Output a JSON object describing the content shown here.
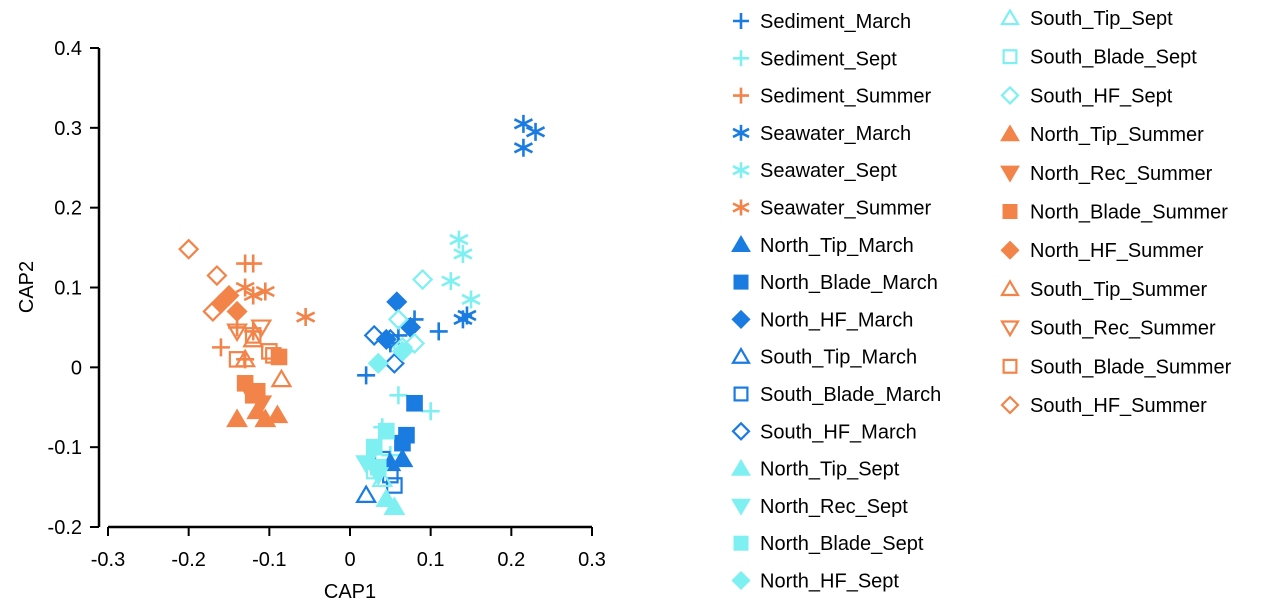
{
  "chart_data": {
    "type": "scatter",
    "xlabel": "CAP1",
    "ylabel": "CAP2",
    "xlim": [
      -0.3,
      0.3
    ],
    "ylim": [
      -0.2,
      0.4
    ],
    "xticks": [
      -0.3,
      -0.2,
      -0.1,
      0,
      0.1,
      0.2,
      0.3
    ],
    "xtick_labels": [
      "-0.3",
      "-0.2",
      "-0.1",
      "0",
      "0.1",
      "0.2",
      "0.3"
    ],
    "yticks": [
      -0.2,
      -0.1,
      0,
      0.1,
      0.2,
      0.3,
      0.4
    ],
    "ytick_labels": [
      "-0.2",
      "-0.1",
      "0",
      "0.1",
      "0.2",
      "0.3",
      "0.4"
    ],
    "grid": false,
    "legend_position": "right",
    "colors": {
      "march": "#1a7be0",
      "sept": "#7ef0f2",
      "summer": "#f2844a"
    },
    "series": [
      {
        "name": "Sediment_March",
        "color": "march",
        "marker": "plus",
        "points": [
          [
            0.02,
            -0.01
          ],
          [
            0.06,
            0.04
          ],
          [
            0.08,
            0.06
          ],
          [
            0.11,
            0.045
          ],
          [
            0.05,
            0.03
          ]
        ]
      },
      {
        "name": "Sediment_Sept",
        "color": "sept",
        "marker": "plus",
        "points": [
          [
            0.06,
            -0.035
          ],
          [
            0.1,
            -0.055
          ],
          [
            0.04,
            -0.075
          ],
          [
            0.05,
            -0.11
          ]
        ]
      },
      {
        "name": "Sediment_Summer",
        "color": "summer",
        "marker": "plus",
        "points": [
          [
            -0.13,
            0.13
          ],
          [
            -0.12,
            0.13
          ],
          [
            -0.14,
            0.05
          ],
          [
            -0.16,
            0.025
          ],
          [
            -0.13,
            0.01
          ],
          [
            -0.12,
            0.045
          ]
        ]
      },
      {
        "name": "Seawater_March",
        "color": "march",
        "marker": "asterisk",
        "points": [
          [
            0.215,
            0.305
          ],
          [
            0.23,
            0.295
          ],
          [
            0.215,
            0.275
          ],
          [
            0.14,
            0.06
          ],
          [
            0.145,
            0.065
          ]
        ]
      },
      {
        "name": "Seawater_Sept",
        "color": "sept",
        "marker": "asterisk",
        "points": [
          [
            0.135,
            0.16
          ],
          [
            0.14,
            0.142
          ],
          [
            0.125,
            0.108
          ],
          [
            0.15,
            0.085
          ]
        ]
      },
      {
        "name": "Seawater_Summer",
        "color": "summer",
        "marker": "asterisk",
        "points": [
          [
            -0.055,
            0.063
          ],
          [
            -0.105,
            0.095
          ],
          [
            -0.12,
            0.09
          ],
          [
            -0.13,
            0.1
          ]
        ]
      },
      {
        "name": "North_Tip_March",
        "color": "march",
        "marker": "tri-up-filled",
        "points": [
          [
            0.065,
            -0.115
          ],
          [
            0.05,
            -0.12
          ]
        ]
      },
      {
        "name": "North_Blade_March",
        "color": "march",
        "marker": "square-filled",
        "points": [
          [
            0.08,
            -0.045
          ],
          [
            0.07,
            -0.085
          ],
          [
            0.065,
            -0.095
          ]
        ]
      },
      {
        "name": "North_HF_March",
        "color": "march",
        "marker": "diamond-filled",
        "points": [
          [
            0.058,
            0.082
          ],
          [
            0.075,
            0.05
          ],
          [
            0.045,
            0.035
          ]
        ]
      },
      {
        "name": "South_Tip_March",
        "color": "march",
        "marker": "tri-up-open",
        "points": [
          [
            0.02,
            -0.16
          ]
        ]
      },
      {
        "name": "South_Blade_March",
        "color": "march",
        "marker": "square-open",
        "points": [
          [
            0.04,
            -0.115
          ],
          [
            0.05,
            -0.135
          ],
          [
            0.055,
            -0.148
          ]
        ]
      },
      {
        "name": "South_HF_March",
        "color": "march",
        "marker": "diamond-open",
        "points": [
          [
            0.03,
            0.04
          ],
          [
            0.05,
            0.035
          ],
          [
            0.055,
            0.005
          ]
        ]
      },
      {
        "name": "North_Tip_Sept",
        "color": "sept",
        "marker": "tri-up-filled",
        "points": [
          [
            0.055,
            -0.175
          ],
          [
            0.045,
            -0.165
          ]
        ]
      },
      {
        "name": "North_Rec_Sept",
        "color": "sept",
        "marker": "tri-down-filled",
        "points": [
          [
            0.02,
            -0.12
          ],
          [
            0.035,
            -0.135
          ]
        ]
      },
      {
        "name": "North_Blade_Sept",
        "color": "sept",
        "marker": "square-filled",
        "points": [
          [
            0.03,
            -0.1
          ],
          [
            0.045,
            -0.08
          ],
          [
            0.035,
            -0.125
          ]
        ]
      },
      {
        "name": "North_HF_Sept",
        "color": "sept",
        "marker": "diamond-filled",
        "points": [
          [
            0.035,
            0.005
          ],
          [
            0.065,
            0.02
          ]
        ]
      },
      {
        "name": "South_Tip_Sept",
        "color": "sept",
        "marker": "tri-up-open",
        "points": [
          [
            0.04,
            -0.14
          ]
        ]
      },
      {
        "name": "South_Blade_Sept",
        "color": "sept",
        "marker": "square-open",
        "points": [
          [
            0.03,
            -0.13
          ]
        ]
      },
      {
        "name": "South_HF_Sept",
        "color": "sept",
        "marker": "diamond-open",
        "points": [
          [
            0.09,
            0.11
          ],
          [
            0.06,
            0.06
          ],
          [
            0.08,
            0.03
          ],
          [
            0.065,
            0.025
          ]
        ]
      },
      {
        "name": "North_Tip_Summer",
        "color": "summer",
        "marker": "tri-up-filled",
        "points": [
          [
            -0.115,
            -0.055
          ],
          [
            -0.09,
            -0.06
          ],
          [
            -0.14,
            -0.065
          ],
          [
            -0.105,
            -0.065
          ]
        ]
      },
      {
        "name": "North_Rec_Summer",
        "color": "summer",
        "marker": "tri-down-filled",
        "points": [
          [
            -0.11,
            -0.045
          ],
          [
            -0.125,
            -0.03
          ]
        ]
      },
      {
        "name": "North_Blade_Summer",
        "color": "summer",
        "marker": "square-filled",
        "points": [
          [
            -0.13,
            -0.02
          ],
          [
            -0.12,
            -0.035
          ],
          [
            -0.115,
            -0.03
          ],
          [
            -0.088,
            0.013
          ]
        ]
      },
      {
        "name": "North_HF_Summer",
        "color": "summer",
        "marker": "diamond-filled",
        "points": [
          [
            -0.15,
            0.09
          ],
          [
            -0.16,
            0.08
          ],
          [
            -0.14,
            0.07
          ]
        ]
      },
      {
        "name": "South_Tip_Summer",
        "color": "summer",
        "marker": "tri-up-open",
        "points": [
          [
            -0.085,
            -0.015
          ],
          [
            -0.12,
            0.035
          ],
          [
            -0.13,
            0.01
          ]
        ]
      },
      {
        "name": "South_Rec_Summer",
        "color": "summer",
        "marker": "tri-down-open",
        "points": [
          [
            -0.11,
            0.05
          ],
          [
            -0.14,
            0.045
          ]
        ]
      },
      {
        "name": "South_Blade_Summer",
        "color": "summer",
        "marker": "square-open",
        "points": [
          [
            -0.14,
            0.01
          ],
          [
            -0.1,
            0.02
          ],
          [
            -0.095,
            0.015
          ],
          [
            -0.12,
            0.04
          ]
        ]
      },
      {
        "name": "South_HF_Summer",
        "color": "summer",
        "marker": "diamond-open",
        "points": [
          [
            -0.2,
            0.148
          ],
          [
            -0.165,
            0.115
          ],
          [
            -0.17,
            0.07
          ]
        ]
      }
    ]
  }
}
